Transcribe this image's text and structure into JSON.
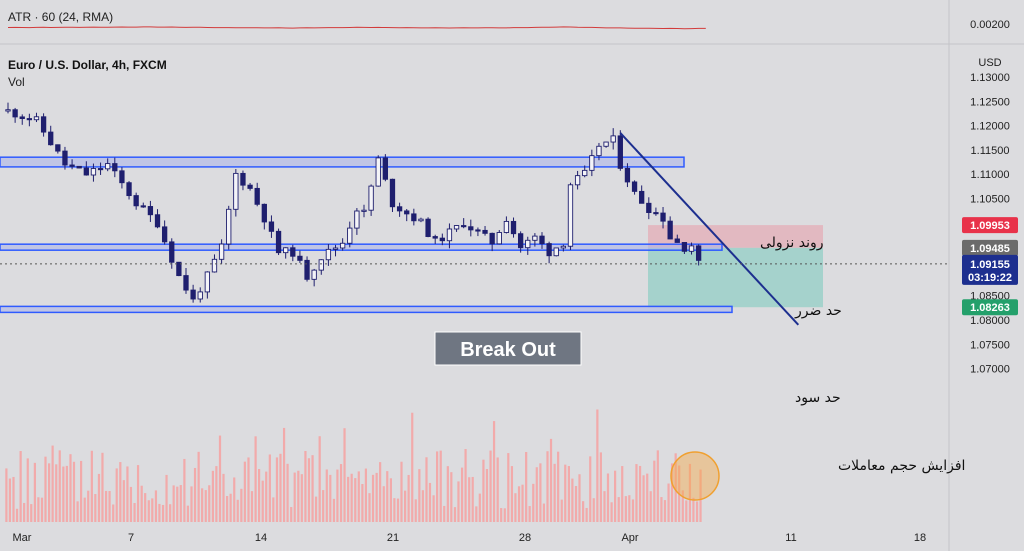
{
  "header": {
    "indicator": "ATR · 60 (24, RMA)",
    "symbol": "Euro / U.S. Dollar, 4h, FXCM",
    "volume": "Vol"
  },
  "colors": {
    "background": "#dcdcdf",
    "zone_border": "#2f5bff",
    "zone_fill": "#aab2ea",
    "trendline": "#1d2f8f",
    "stop_fill": "#e3b3bc",
    "target_fill": "#93cfc6",
    "up_candle": "#1f1f6e",
    "atr_line": "#d23b3b",
    "vol_bar": "#f2a6a6",
    "stop_tag": "#e8324a",
    "entry_tag": "#6b6b6b",
    "current_tag": "#1d2f8f",
    "target_tag": "#24a06b"
  },
  "chart_data": {
    "type": "candlestick",
    "interval": "4h",
    "y_axis": {
      "unit": "USD",
      "ticks": [
        "1.13000",
        "1.12500",
        "1.12000",
        "1.11500",
        "1.11000",
        "1.10500",
        "1.10000",
        "1.09500",
        "1.09000",
        "1.08500",
        "1.08000",
        "1.07500",
        "1.07000"
      ],
      "ylim": [
        1.068,
        1.133
      ]
    },
    "atr_axis": {
      "ticks": [
        "0.00200"
      ]
    },
    "x_axis": {
      "ticks": [
        "Mar",
        "7",
        "14",
        "21",
        "28",
        "Apr",
        "11",
        "18"
      ]
    },
    "price_path": [
      [
        0,
        1.123
      ],
      [
        4,
        1.121
      ],
      [
        8,
        1.112
      ],
      [
        11,
        1.11
      ],
      [
        14,
        1.112
      ],
      [
        18,
        1.104
      ],
      [
        21,
        1.1
      ],
      [
        24,
        1.089
      ],
      [
        26,
        1.084
      ],
      [
        28,
        1.089
      ],
      [
        30,
        1.095
      ],
      [
        32,
        1.11
      ],
      [
        34,
        1.107
      ],
      [
        36,
        1.101
      ],
      [
        38,
        1.094
      ],
      [
        40,
        1.094
      ],
      [
        42,
        1.089
      ],
      [
        44,
        1.093
      ],
      [
        47,
        1.096
      ],
      [
        49,
        1.103
      ],
      [
        50,
        1.102
      ],
      [
        52,
        1.113
      ],
      [
        54,
        1.104
      ],
      [
        56,
        1.102
      ],
      [
        58,
        1.1
      ],
      [
        60,
        1.096
      ],
      [
        62,
        1.098
      ],
      [
        64,
        1.1
      ],
      [
        66,
        1.098
      ],
      [
        68,
        1.096
      ],
      [
        70,
        1.101
      ],
      [
        72,
        1.095
      ],
      [
        74,
        1.097
      ],
      [
        76,
        1.094
      ],
      [
        78,
        1.096
      ],
      [
        79,
        1.108
      ],
      [
        81,
        1.11
      ],
      [
        83,
        1.116
      ],
      [
        85,
        1.117
      ],
      [
        86,
        1.112
      ],
      [
        88,
        1.106
      ],
      [
        90,
        1.103
      ],
      [
        92,
        1.101
      ],
      [
        93,
        1.097
      ],
      [
        95,
        1.095
      ],
      [
        96,
        1.0955
      ],
      [
        97,
        1.0915
      ]
    ],
    "atr_path": [
      [
        0,
        0.00205
      ],
      [
        10,
        0.00208
      ],
      [
        20,
        0.00212
      ],
      [
        30,
        0.00204
      ],
      [
        40,
        0.002
      ],
      [
        50,
        0.00207
      ],
      [
        60,
        0.00201
      ],
      [
        70,
        0.00202
      ],
      [
        78,
        0.00212
      ],
      [
        84,
        0.00202
      ],
      [
        90,
        0.00197
      ],
      [
        95,
        0.00193
      ],
      [
        98,
        0.00196
      ]
    ],
    "zones": [
      {
        "name": "resistance",
        "low": 1.1115,
        "high": 1.1135
      },
      {
        "name": "support",
        "low": 1.0944,
        "high": 1.0956
      },
      {
        "name": "lower-support",
        "low": 1.0816,
        "high": 1.0828
      }
    ],
    "trendline": {
      "from": [
        86,
        1.1185
      ],
      "to": [
        111,
        1.079
      ]
    },
    "position": {
      "stop": "1.09953",
      "entry": "1.09485",
      "target": "1.08263",
      "current": "1.09155",
      "countdown": "03:19:22"
    }
  },
  "annotations": {
    "breakout": "Break Out",
    "downtrend": "روند نزولی",
    "stop_loss": "حد ضرر",
    "take_profit": "حد سود",
    "volume_increase": "افزایش حجم معاملات"
  }
}
